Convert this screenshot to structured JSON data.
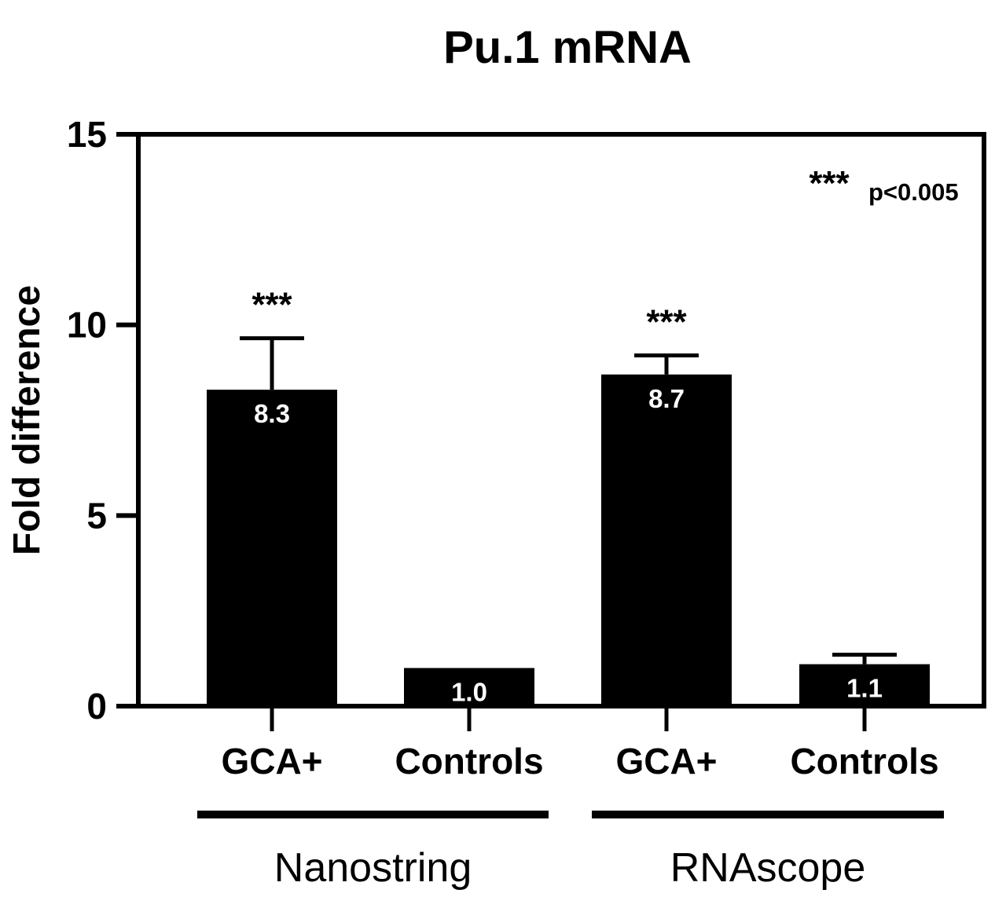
{
  "chart_data": {
    "type": "bar",
    "title": "Pu.1 mRNA",
    "ylabel": "Fold difference",
    "ylim": [
      0,
      15
    ],
    "yticks": [
      0,
      5,
      10,
      15
    ],
    "categories": [
      "GCA+",
      "Controls",
      "GCA+",
      "Controls"
    ],
    "groups": [
      {
        "label": "Nanostring",
        "categories": [
          0,
          1
        ]
      },
      {
        "label": "RNAscope",
        "categories": [
          2,
          3
        ]
      }
    ],
    "values": [
      8.3,
      1.0,
      8.7,
      1.1
    ],
    "error_upper": [
      9.65,
      1.0,
      9.2,
      1.35
    ],
    "value_labels": [
      "8.3",
      "1.0",
      "8.7",
      "1.1"
    ],
    "significance": [
      "***",
      "",
      "***",
      ""
    ],
    "legend": {
      "marker": "***",
      "text": "p<0.005",
      "placement": "top-right"
    },
    "bar_color": "#000000",
    "value_label_color": "#ffffff",
    "grid": false
  }
}
